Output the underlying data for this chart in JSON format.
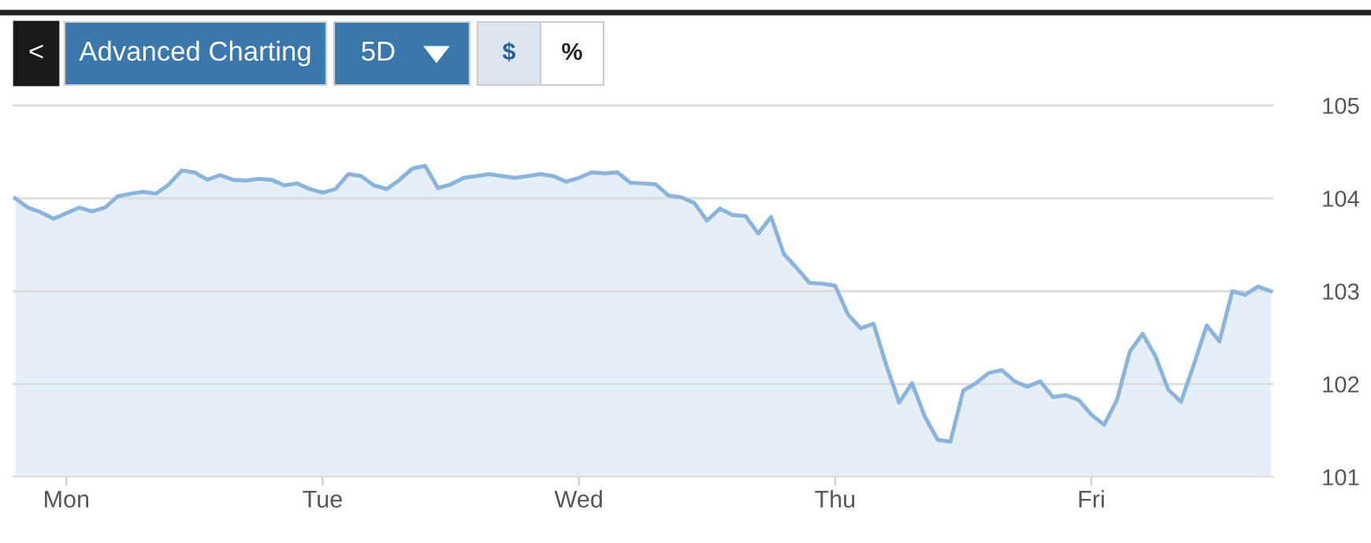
{
  "chart_data": {
    "type": "area",
    "annotations": [
      "<",
      "Advanced Charting",
      "5D",
      "$",
      "%"
    ],
    "categories": [
      null,
      null,
      null,
      null,
      "Mon",
      null,
      null,
      null,
      null,
      null,
      null,
      null,
      null,
      null,
      null,
      null,
      null,
      null,
      null,
      null,
      null,
      null,
      null,
      null,
      "Tue",
      null,
      null,
      null,
      null,
      null,
      null,
      null,
      null,
      null,
      null,
      null,
      null,
      null,
      null,
      null,
      null,
      null,
      null,
      null,
      "Wed",
      null,
      null,
      null,
      null,
      null,
      null,
      null,
      null,
      null,
      null,
      null,
      null,
      null,
      null,
      null,
      null,
      null,
      null,
      null,
      "Thu",
      null,
      null,
      null,
      null,
      null,
      null,
      null,
      null,
      null,
      null,
      null,
      null,
      null,
      null,
      null,
      null,
      null,
      null,
      null,
      "Fri",
      null,
      null,
      null,
      null,
      null,
      null,
      null,
      null,
      null,
      null,
      null,
      null,
      null,
      null
    ],
    "ylim": [
      101,
      106
    ],
    "yticks": [
      101,
      102,
      103,
      104,
      105
    ],
    "grid": "y",
    "series": [
      {
        "color": "#8ab4dd",
        "values": [
          104.0,
          103.9,
          103.85,
          103.78,
          103.84,
          103.9,
          103.86,
          103.9,
          104.02,
          104.05,
          104.07,
          104.05,
          104.15,
          104.3,
          104.28,
          104.2,
          104.25,
          104.2,
          104.19,
          104.21,
          104.2,
          104.14,
          104.16,
          104.1,
          104.06,
          104.1,
          104.26,
          104.24,
          104.14,
          104.1,
          104.2,
          104.32,
          104.35,
          104.11,
          104.15,
          104.22,
          104.24,
          104.26,
          104.24,
          104.22,
          104.24,
          104.26,
          104.24,
          104.18,
          104.22,
          104.28,
          104.27,
          104.28,
          104.17,
          104.16,
          104.15,
          104.03,
          104.01,
          103.95,
          103.76,
          103.89,
          103.82,
          103.81,
          103.62,
          103.8,
          103.4,
          103.25,
          103.09,
          103.08,
          103.06,
          102.75,
          102.6,
          102.65,
          102.2,
          101.8,
          102.01,
          101.65,
          101.4,
          101.38,
          101.93,
          102.01,
          102.12,
          102.15,
          102.03,
          101.97,
          102.03,
          101.86,
          101.88,
          101.83,
          101.67,
          101.56,
          101.83,
          102.35,
          102.54,
          102.3,
          101.94,
          101.81,
          102.21,
          102.63,
          102.46,
          103.0,
          102.96,
          103.05,
          103.0
        ]
      }
    ]
  }
}
